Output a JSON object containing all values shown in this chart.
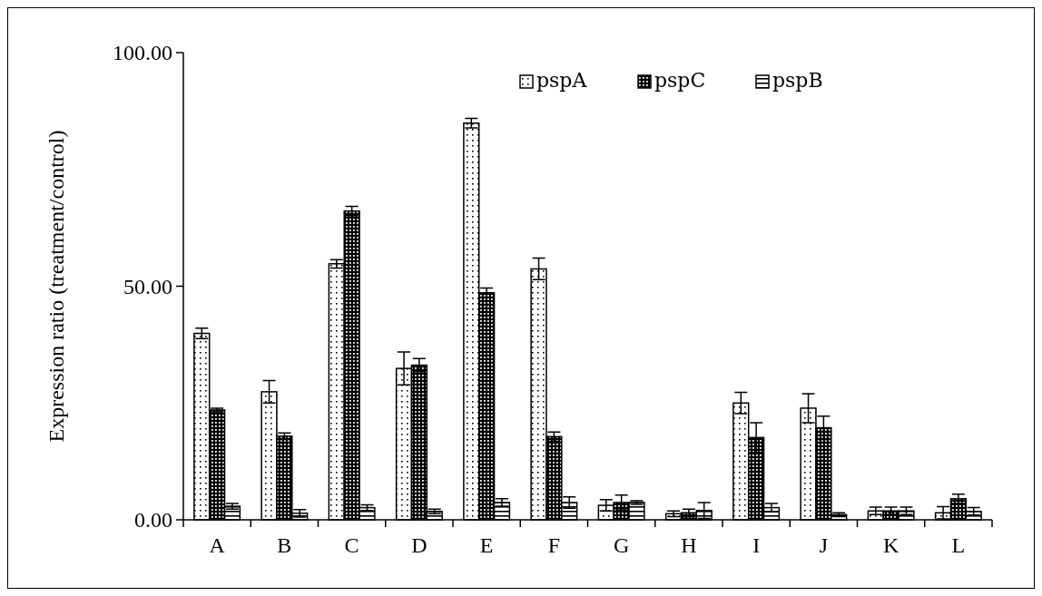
{
  "chart_data": {
    "type": "bar",
    "ylabel": "Expression ratio (treatment/control)",
    "categories": [
      "A",
      "B",
      "C",
      "D",
      "E",
      "F",
      "G",
      "H",
      "I",
      "J",
      "K",
      "L"
    ],
    "series": [
      {
        "name": "pspA",
        "color": "#000000",
        "values": [
          39.9,
          27.4,
          54.8,
          32.4,
          84.9,
          53.7,
          3.1,
          1.3,
          25.0,
          23.9,
          1.9,
          1.5
        ],
        "errors": [
          1.1,
          2.4,
          0.9,
          3.5,
          1.0,
          2.3,
          1.2,
          0.6,
          2.3,
          3.1,
          0.8,
          1.3
        ]
      },
      {
        "name": "pspC",
        "color": "#000000",
        "values": [
          23.5,
          17.9,
          66.1,
          33.1,
          48.6,
          17.8,
          3.7,
          1.5,
          17.6,
          19.7,
          1.9,
          4.5
        ],
        "errors": [
          0.4,
          0.7,
          1.0,
          1.4,
          1.0,
          1.0,
          1.6,
          0.8,
          3.2,
          2.5,
          0.8,
          1.0
        ]
      },
      {
        "name": "pspB",
        "color": "#000000",
        "values": [
          2.9,
          1.4,
          2.6,
          1.8,
          3.7,
          3.7,
          3.7,
          2.0,
          2.6,
          1.1,
          1.9,
          1.8
        ],
        "errors": [
          0.6,
          0.8,
          0.6,
          0.5,
          0.8,
          1.2,
          0.4,
          1.7,
          0.9,
          0.4,
          0.8,
          0.8
        ]
      }
    ],
    "ylim": [
      0,
      100
    ],
    "yticks": [
      {
        "value": 0,
        "label": "0.00"
      },
      {
        "value": 50,
        "label": "50.00"
      },
      {
        "value": 100,
        "label": "100.00"
      }
    ],
    "legend": "top right"
  }
}
